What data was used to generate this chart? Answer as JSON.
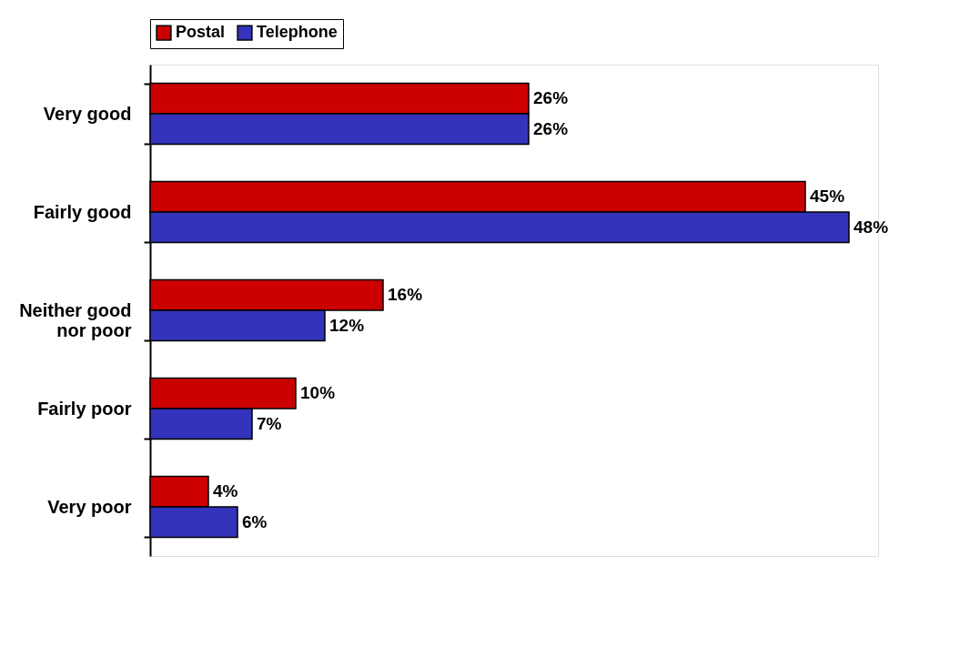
{
  "chart_data": {
    "type": "bar",
    "orientation": "horizontal",
    "categories": [
      "Very good",
      "Fairly good",
      "Neither good nor poor",
      "Fairly poor",
      "Very poor"
    ],
    "series": [
      {
        "name": "Postal",
        "color": "#cc0000",
        "values": [
          26,
          45,
          16,
          10,
          4
        ],
        "value_labels": [
          "26%",
          "45%",
          "16%",
          "10%",
          "4%"
        ]
      },
      {
        "name": "Telephone",
        "color": "#3333bb",
        "values": [
          26,
          48,
          12,
          7,
          6
        ],
        "value_labels": [
          "26%",
          "48%",
          "12%",
          "7%",
          "6%"
        ]
      }
    ],
    "legend": "top",
    "grid": false,
    "tick_labels": "y"
  }
}
